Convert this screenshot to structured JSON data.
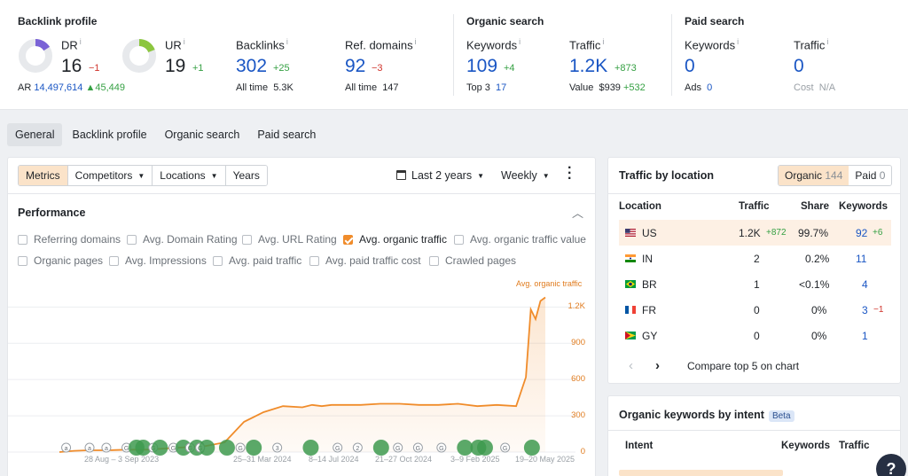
{
  "backlink_profile": {
    "title": "Backlink profile",
    "dr": {
      "label": "DR",
      "value": "16",
      "delta": "−1",
      "ring_fraction": 0.16
    },
    "ar": {
      "label": "AR",
      "value": "14,497,614",
      "delta": "45,449"
    },
    "ur": {
      "label": "UR",
      "value": "19",
      "delta": "+1",
      "ring_fraction": 0.19
    },
    "backlinks": {
      "label": "Backlinks",
      "value": "302",
      "delta": "+25",
      "sub_label": "All time",
      "sub_value": "5.3K"
    },
    "ref_domains": {
      "label": "Ref. domains",
      "value": "92",
      "delta": "−3",
      "sub_label": "All time",
      "sub_value": "147"
    }
  },
  "organic_search": {
    "title": "Organic search",
    "keywords": {
      "label": "Keywords",
      "value": "109",
      "delta": "+4",
      "sub_label": "Top 3",
      "sub_value": "17"
    },
    "traffic": {
      "label": "Traffic",
      "value": "1.2K",
      "delta": "+873",
      "sub_label": "Value",
      "sub_value": "$939",
      "sub_delta": "+532"
    }
  },
  "paid_search": {
    "title": "Paid search",
    "keywords": {
      "label": "Keywords",
      "value": "0",
      "sub_label": "Ads",
      "sub_value": "0"
    },
    "traffic": {
      "label": "Traffic",
      "value": "0",
      "sub_label": "Cost",
      "sub_value": "N/A"
    }
  },
  "tabs": [
    "General",
    "Backlink profile",
    "Organic search",
    "Paid search"
  ],
  "toolbar": {
    "buttons": [
      "Metrics",
      "Competitors",
      "Locations",
      "Years"
    ],
    "period": "Last 2 years",
    "interval": "Weekly"
  },
  "performance": {
    "title": "Performance",
    "checkboxes": [
      {
        "label": "Referring domains",
        "checked": false
      },
      {
        "label": "Avg. Domain Rating",
        "checked": false
      },
      {
        "label": "Avg. URL Rating",
        "checked": false
      },
      {
        "label": "Avg. organic traffic",
        "checked": true
      },
      {
        "label": "Avg. organic traffic value",
        "checked": false
      },
      {
        "label": "Organic pages",
        "checked": false
      },
      {
        "label": "Avg. Impressions",
        "checked": false
      },
      {
        "label": "Avg. paid traffic",
        "checked": false
      },
      {
        "label": "Avg. paid traffic cost",
        "checked": false
      },
      {
        "label": "Crawled pages",
        "checked": false
      }
    ]
  },
  "chart_data": {
    "type": "area",
    "title": "",
    "series": [
      {
        "name": "Avg. organic traffic",
        "color": "#f08c2b",
        "x": [
          0,
          3,
          6,
          10,
          14,
          18,
          22,
          26,
          30,
          34,
          38,
          42,
          46,
          50,
          52,
          54,
          56,
          58,
          62,
          66,
          70,
          74,
          78,
          82,
          86,
          90,
          94,
          96,
          97,
          98,
          99,
          100
        ],
        "values": [
          0,
          10,
          15,
          15,
          20,
          20,
          30,
          40,
          50,
          80,
          250,
          330,
          380,
          370,
          390,
          380,
          390,
          390,
          390,
          400,
          400,
          390,
          390,
          400,
          380,
          390,
          380,
          620,
          1180,
          1100,
          1250,
          1280
        ]
      }
    ],
    "x_tick_labels": [
      "28 Aug – 3 Sep 2023",
      "25–31 Mar 2024",
      "8–14 Jul 2024",
      "21–27 Oct 2024",
      "3–9 Feb 2025",
      "19–20 May 2025"
    ],
    "y_tick_labels": [
      "1.2K",
      "900",
      "600",
      "300",
      "0"
    ],
    "y_ticks": [
      1200,
      900,
      600,
      300,
      0
    ],
    "ylim": [
      0,
      1320
    ],
    "annotation_label": "Avg. organic traffic",
    "event_markers": [
      {
        "x": 2,
        "kind": "a"
      },
      {
        "x": 9,
        "kind": "a"
      },
      {
        "x": 14,
        "kind": "a"
      },
      {
        "x": 20,
        "kind": "G"
      },
      {
        "x": 23,
        "kind": "big"
      },
      {
        "x": 25,
        "kind": "big"
      },
      {
        "x": 28,
        "kind": "G"
      },
      {
        "x": 30,
        "kind": "big"
      },
      {
        "x": 34,
        "kind": "G"
      },
      {
        "x": 37,
        "kind": "big"
      },
      {
        "x": 39,
        "kind": "G"
      },
      {
        "x": 41,
        "kind": "big"
      },
      {
        "x": 42,
        "kind": "G"
      },
      {
        "x": 44,
        "kind": "big"
      },
      {
        "x": 50,
        "kind": "big"
      },
      {
        "x": 54,
        "kind": "G"
      },
      {
        "x": 58,
        "kind": "big"
      },
      {
        "x": 65,
        "kind": "3"
      },
      {
        "x": 75,
        "kind": "big"
      },
      {
        "x": 83,
        "kind": "G"
      },
      {
        "x": 89,
        "kind": "2"
      },
      {
        "x": 96,
        "kind": "big"
      },
      {
        "x": 101,
        "kind": "G"
      },
      {
        "x": 107,
        "kind": "G"
      },
      {
        "x": 114,
        "kind": "G"
      },
      {
        "x": 121,
        "kind": "big"
      },
      {
        "x": 125,
        "kind": "big"
      },
      {
        "x": 127,
        "kind": "big"
      },
      {
        "x": 133,
        "kind": "G"
      },
      {
        "x": 141,
        "kind": "big"
      }
    ]
  },
  "traffic_by_location": {
    "title": "Traffic by location",
    "toggle": {
      "organic_label": "Organic",
      "organic_count": "144",
      "paid_label": "Paid",
      "paid_count": "0"
    },
    "headers": {
      "location": "Location",
      "traffic": "Traffic",
      "share": "Share",
      "keywords": "Keywords"
    },
    "rows": [
      {
        "code": "US",
        "traffic": "1.2K",
        "traffic_delta": "+872",
        "share": "99.7%",
        "keywords": "92",
        "kw_delta": "+6"
      },
      {
        "code": "IN",
        "traffic": "2",
        "traffic_delta": "",
        "share": "0.2%",
        "keywords": "11",
        "kw_delta": ""
      },
      {
        "code": "BR",
        "traffic": "1",
        "traffic_delta": "",
        "share": "<0.1%",
        "keywords": "4",
        "kw_delta": ""
      },
      {
        "code": "FR",
        "traffic": "0",
        "traffic_delta": "",
        "share": "0%",
        "keywords": "3",
        "kw_delta": "−1"
      },
      {
        "code": "GY",
        "traffic": "0",
        "traffic_delta": "",
        "share": "0%",
        "keywords": "1",
        "kw_delta": ""
      }
    ],
    "compare_label": "Compare top 5 on chart"
  },
  "intent": {
    "title": "Organic keywords by intent",
    "badge": "Beta",
    "headers": {
      "intent": "Intent",
      "keywords": "Keywords",
      "traffic": "Traffic"
    }
  },
  "help": {
    "label": "?"
  }
}
